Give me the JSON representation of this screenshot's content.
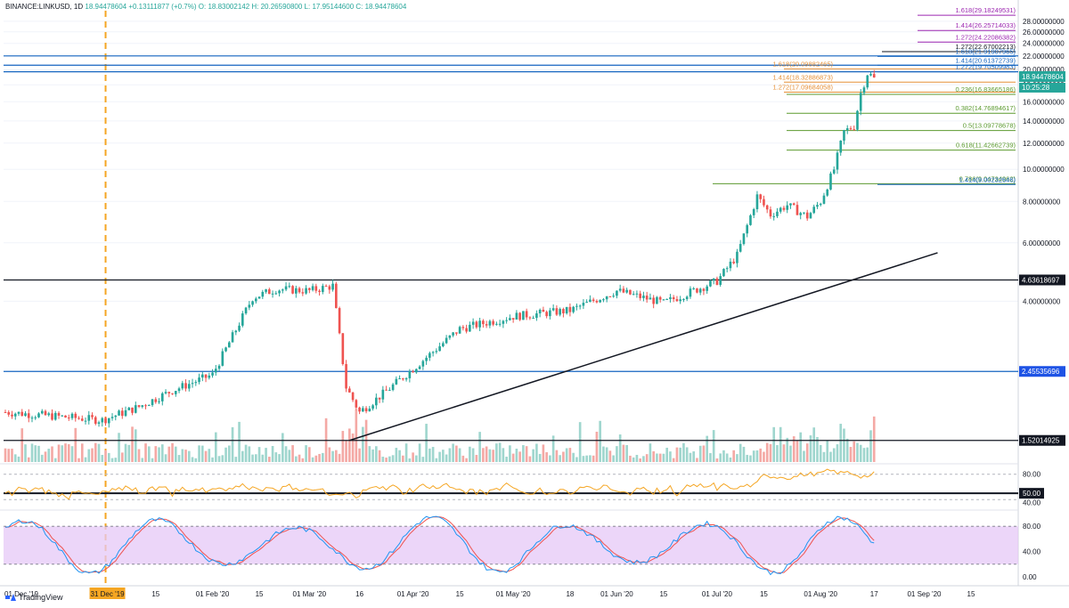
{
  "header": {
    "symbol": "BINANCE:LINKUSD, 1D",
    "price": "18.94478604",
    "change": "+0.13111877 (+0.7%)",
    "ohlc": "O: 18.83002142  H: 20.26590800  L: 17.95144600  C: 18.94478604"
  },
  "brand": "TradingView",
  "colors": {
    "up": "#26a69a",
    "down": "#ef5350",
    "volume_up": "#9fd6ce",
    "volume_down": "#f4a9a5",
    "fib_purple": "#9c27b0",
    "fib_blue": "#1565c0",
    "fib_orange": "#e69138",
    "fib_green": "#5b9a2f",
    "rsi": "#f5a623",
    "stoch_k": "#2196f3",
    "stoch_d": "#ef5350",
    "stoch_band": "#e6c8f7",
    "dashed_marker": "#f5a623"
  },
  "chart_data": {
    "type": "candlestick",
    "y_scale": "log",
    "ylim": [
      1.3,
      30.5
    ],
    "y_ticks": [
      "28.00000000",
      "26.00000000",
      "24.00000000",
      "22.00000000",
      "20.00000000",
      "18.00000000",
      "16.00000000",
      "14.00000000",
      "12.00000000",
      "10.00000000",
      "8.00000000",
      "6.00000000",
      "4.00000000"
    ],
    "x_ticks": [
      "01 Dec '19",
      "31 Dec '19",
      "15",
      "01 Feb '20",
      "15",
      "01 Mar '20",
      "16",
      "01 Apr '20",
      "15",
      "01 May '20",
      "18",
      "01 Jun '20",
      "15",
      "01 Jul '20",
      "15",
      "01 Aug '20",
      "17",
      "01 Sep '20",
      "15"
    ],
    "x_range": [
      "2019-12-01",
      "2020-09-30"
    ],
    "highlighted_date": "31 Dec '19",
    "last_price": "18.94478604",
    "countdown": "10:25:28",
    "price_badges": [
      {
        "value": 4.636,
        "label": "4.63618697",
        "style": "dark"
      },
      {
        "value": 2.455,
        "label": "2.45535696",
        "style": "blue"
      },
      {
        "value": 1.52,
        "label": "1.52014925",
        "style": "dark"
      }
    ],
    "key_closes": [
      {
        "date": "2019-12-01",
        "close": 1.85
      },
      {
        "date": "2019-12-30",
        "close": 1.75
      },
      {
        "date": "2020-01-10",
        "close": 1.92
      },
      {
        "date": "2020-01-20",
        "close": 2.15
      },
      {
        "date": "2020-02-01",
        "close": 2.4
      },
      {
        "date": "2020-02-13",
        "close": 4.1
      },
      {
        "date": "2020-02-20",
        "close": 4.35
      },
      {
        "date": "2020-03-01",
        "close": 4.3
      },
      {
        "date": "2020-03-08",
        "close": 4.45
      },
      {
        "date": "2020-03-12",
        "close": 2.2
      },
      {
        "date": "2020-03-16",
        "close": 1.85
      },
      {
        "date": "2020-03-23",
        "close": 2.1
      },
      {
        "date": "2020-04-01",
        "close": 2.5
      },
      {
        "date": "2020-04-15",
        "close": 3.3
      },
      {
        "date": "2020-05-01",
        "close": 3.6
      },
      {
        "date": "2020-05-18",
        "close": 3.75
      },
      {
        "date": "2020-06-01",
        "close": 4.3
      },
      {
        "date": "2020-06-15",
        "close": 3.95
      },
      {
        "date": "2020-07-01",
        "close": 4.6
      },
      {
        "date": "2020-07-07",
        "close": 5.5
      },
      {
        "date": "2020-07-13",
        "close": 8.3
      },
      {
        "date": "2020-07-17",
        "close": 7.3
      },
      {
        "date": "2020-07-22",
        "close": 7.8
      },
      {
        "date": "2020-07-28",
        "close": 7.2
      },
      {
        "date": "2020-08-01",
        "close": 8.0
      },
      {
        "date": "2020-08-05",
        "close": 10.0
      },
      {
        "date": "2020-08-08",
        "close": 13.0
      },
      {
        "date": "2020-08-11",
        "close": 13.5
      },
      {
        "date": "2020-08-13",
        "close": 17.0
      },
      {
        "date": "2020-08-15",
        "close": 19.5
      },
      {
        "date": "2020-08-17",
        "close": 18.94
      }
    ],
    "horizontal_levels": [
      {
        "value": 22.0,
        "color": "#1565c0"
      },
      {
        "value": 20.62,
        "color": "#1565c0"
      },
      {
        "value": 19.7,
        "color": "#1565c0"
      },
      {
        "value": 4.636,
        "color": "#131722"
      },
      {
        "value": 2.455,
        "color": "#1565c0"
      },
      {
        "value": 1.52,
        "color": "#131722"
      }
    ],
    "fib_levels": [
      {
        "label": "1.618(29.18249531)",
        "value": 29.18,
        "color": "#9c27b0"
      },
      {
        "label": "1.414(26.25714033)",
        "value": 26.26,
        "color": "#9c27b0"
      },
      {
        "label": "1.272(24.22086382)",
        "value": 24.22,
        "color": "#9c27b0"
      },
      {
        "label": "1.272(22.67002213)",
        "value": 22.67,
        "color": "#131722"
      },
      {
        "label": "1.618(21.91907965)",
        "value": 21.92,
        "color": "#1565c0"
      },
      {
        "label": "1.414(20.61372739)",
        "value": 20.61,
        "color": "#1565c0"
      },
      {
        "label": "1.618(20.09882465)",
        "value": 20.1,
        "color": "#e69138"
      },
      {
        "label": "1.272(19.70509983)",
        "value": 19.71,
        "color": "#1565c0"
      },
      {
        "label": "1.414(18.32886873)",
        "value": 18.33,
        "color": "#e69138"
      },
      {
        "label": "1.272(17.09684058)",
        "value": 17.1,
        "color": "#e69138"
      },
      {
        "label": "0.236(16.83665186)",
        "value": 16.84,
        "color": "#5b9a2f"
      },
      {
        "label": "0.382(14.76894617)",
        "value": 14.77,
        "color": "#5b9a2f"
      },
      {
        "label": "0.5(13.09778678)",
        "value": 13.1,
        "color": "#5b9a2f"
      },
      {
        "label": "0.618(11.42662739)",
        "value": 11.43,
        "color": "#5b9a2f"
      },
      {
        "label": "0.786(9.04734962)",
        "value": 9.05,
        "color": "#5b9a2f"
      },
      {
        "label": "1.414(9.00232646)",
        "value": 9.0,
        "color": "#1565c0"
      }
    ],
    "trendline": [
      {
        "date": "2020-03-13",
        "value": 1.52
      },
      {
        "date": "2020-09-05",
        "value": 5.6
      }
    ],
    "rsi": {
      "ticks": [
        "80.00",
        "50.00",
        "40.00"
      ],
      "levels": [
        80,
        50,
        40
      ],
      "badge": "50.00"
    },
    "stoch_rsi": {
      "ticks": [
        "80.00",
        "40.00",
        "0.00"
      ],
      "band": [
        20,
        80
      ]
    }
  }
}
